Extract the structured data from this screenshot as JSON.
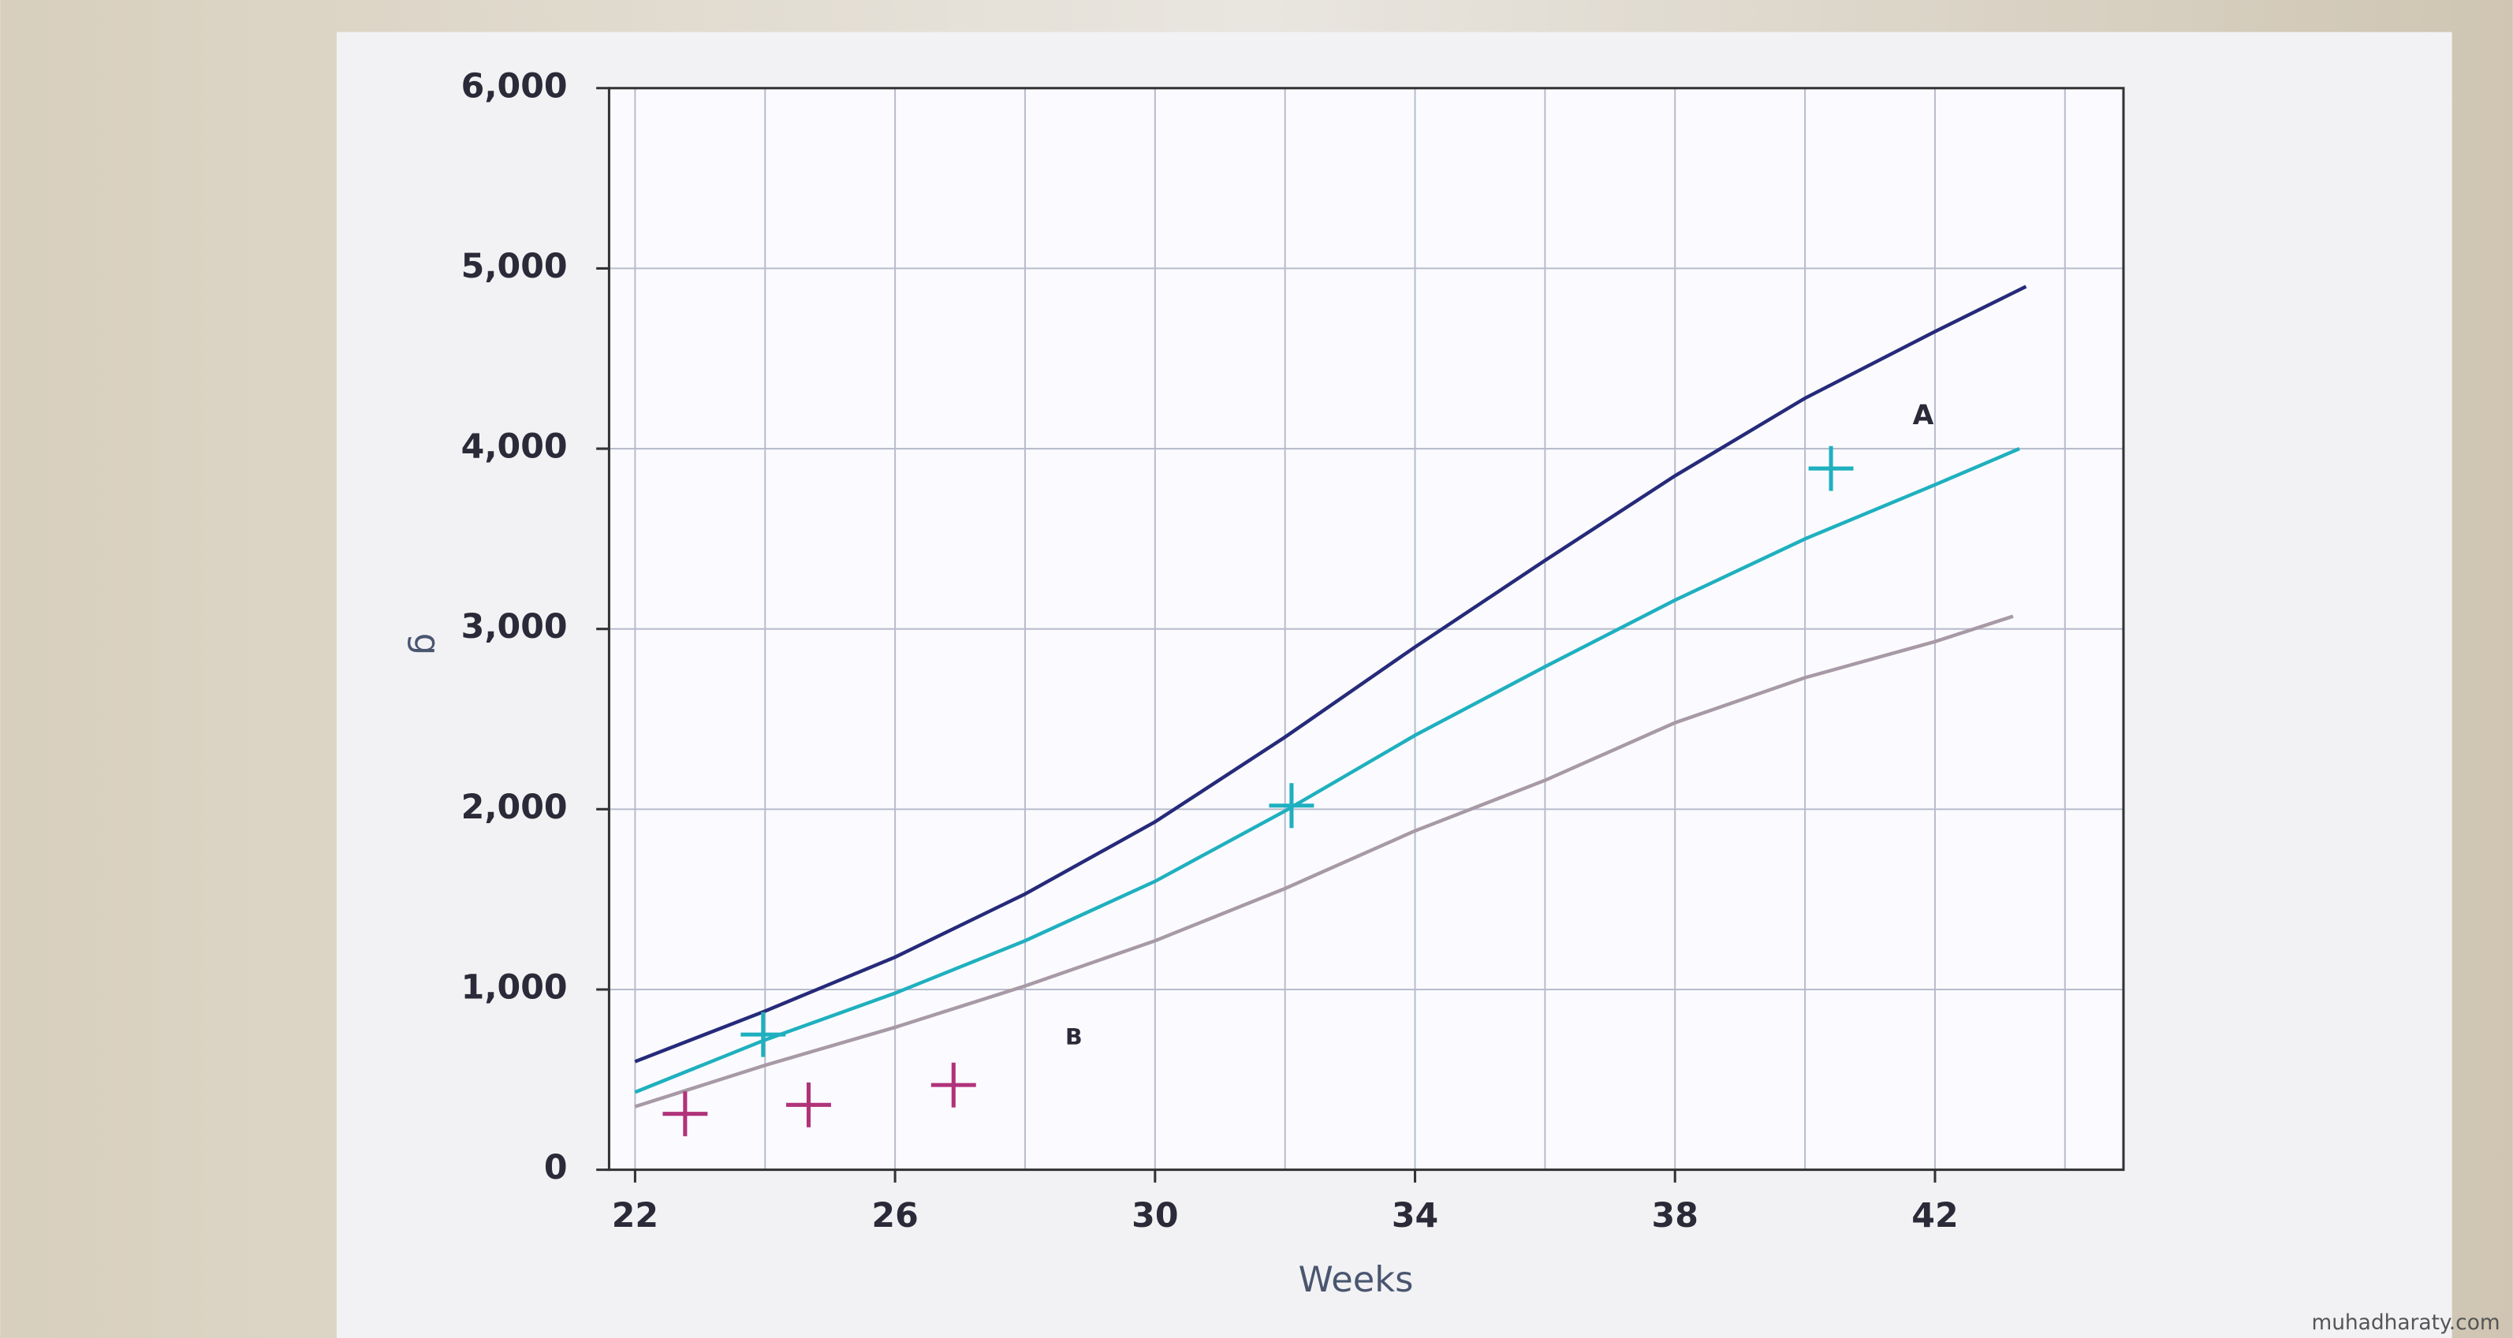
{
  "chart_data": {
    "type": "line",
    "x_label": "Weeks",
    "y_label": "g",
    "annotations": [
      "A",
      "B"
    ],
    "watermark": "muhadharaty.com",
    "xlim": [
      21.6,
      44.9
    ],
    "ylim": [
      0,
      6000
    ],
    "xticks": [
      22,
      26,
      30,
      34,
      38,
      42
    ],
    "xgrid": [
      24,
      28,
      32,
      36,
      40,
      44
    ],
    "yticks": [
      0,
      {
        "value": 1000,
        "label": "1,000"
      },
      {
        "value": 2000,
        "label": "2,000"
      },
      {
        "value": 3000,
        "label": "3,000"
      },
      {
        "value": 4000,
        "label": "4,000"
      },
      {
        "value": 5000,
        "label": "5,000"
      },
      {
        "value": 6000,
        "label": "6,000"
      }
    ],
    "grid": true,
    "series": [
      {
        "type": "line",
        "color": "#262a7a",
        "x": [
          22,
          24,
          26,
          28,
          30,
          32,
          34,
          36,
          38,
          40,
          42,
          43.4
        ],
        "values": [
          600,
          880,
          1180,
          1530,
          1930,
          2400,
          2900,
          3380,
          3850,
          4280,
          4650,
          4900
        ]
      },
      {
        "type": "line",
        "color": "#1fb0bf",
        "x": [
          22,
          24,
          26,
          28,
          30,
          32,
          34,
          36,
          38,
          40,
          42,
          43.3
        ],
        "values": [
          430,
          720,
          980,
          1270,
          1600,
          1990,
          2410,
          2790,
          3160,
          3500,
          3800,
          4000
        ]
      },
      {
        "type": "line",
        "color": "#a79aa6",
        "x": [
          22,
          24,
          26,
          28,
          30,
          32,
          34,
          36,
          38,
          40,
          42,
          43.2
        ],
        "values": [
          350,
          580,
          790,
          1020,
          1270,
          1560,
          1880,
          2160,
          2480,
          2730,
          2930,
          3070
        ]
      },
      {
        "type": "scatter",
        "color": "#1fb0bf",
        "x": [
          23.97,
          32.1,
          40.4
        ],
        "values": [
          750,
          2020,
          3890
        ]
      },
      {
        "type": "scatter",
        "color": "#b0337a",
        "x": [
          22.77,
          24.67,
          26.9
        ],
        "values": [
          310,
          360,
          470
        ]
      }
    ]
  }
}
